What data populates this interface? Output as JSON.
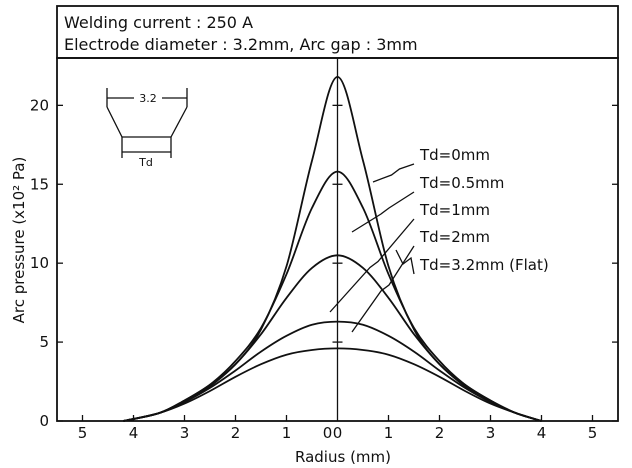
{
  "conditions": {
    "line1": "Welding current : 250 A",
    "line2": "Electrode diameter : 3.2mm,   Arc gap : 3mm"
  },
  "inset": {
    "top_label": "3.2",
    "bottom_label": "Td"
  },
  "chart_data": {
    "type": "line",
    "title": "",
    "xlabel": "Radius (mm)",
    "ylabel": "Arc pressure (x10² Pa)",
    "xlim": [
      -5.5,
      5.5
    ],
    "ylim": [
      0,
      23
    ],
    "x_tick_labels": [
      "5",
      "4",
      "3",
      "2",
      "1",
      "0",
      "0",
      "1",
      "2",
      "3",
      "4",
      "5"
    ],
    "y_ticks": [
      0,
      5,
      10,
      15,
      20
    ],
    "grid": false,
    "legend_placement": "upper-right (leader lines to curve peaks)",
    "series": [
      {
        "name": "Td=0mm",
        "x": [
          -4.2,
          -3.5,
          -3.0,
          -2.5,
          -2.0,
          -1.5,
          -1.0,
          -0.5,
          0,
          0.5,
          1.0,
          1.5,
          2.0,
          2.5,
          3.0,
          3.5,
          4.0
        ],
        "y": [
          0,
          0.5,
          1.3,
          2.3,
          3.6,
          5.8,
          9.8,
          16.5,
          21.8,
          16.5,
          9.8,
          5.8,
          3.6,
          2.3,
          1.3,
          0.5,
          0
        ]
      },
      {
        "name": "Td=0.5mm",
        "x": [
          -4.2,
          -3.5,
          -3.0,
          -2.5,
          -2.0,
          -1.5,
          -1.0,
          -0.5,
          0,
          0.5,
          1.0,
          1.5,
          2.0,
          2.5,
          3.0,
          3.5,
          4.0
        ],
        "y": [
          0,
          0.5,
          1.3,
          2.3,
          3.8,
          5.9,
          9.3,
          13.5,
          15.8,
          13.5,
          9.3,
          5.9,
          3.8,
          2.3,
          1.3,
          0.5,
          0
        ]
      },
      {
        "name": "Td=1mm",
        "x": [
          -4.2,
          -3.5,
          -3.0,
          -2.5,
          -2.0,
          -1.5,
          -1.0,
          -0.5,
          0,
          0.5,
          1.0,
          1.5,
          2.0,
          2.5,
          3.0,
          3.5,
          4.0
        ],
        "y": [
          0,
          0.5,
          1.2,
          2.2,
          3.6,
          5.5,
          7.8,
          9.7,
          10.5,
          9.7,
          7.8,
          5.5,
          3.6,
          2.2,
          1.2,
          0.5,
          0
        ]
      },
      {
        "name": "Td=2mm",
        "x": [
          -4.2,
          -3.5,
          -3.0,
          -2.5,
          -2.0,
          -1.5,
          -1.0,
          -0.5,
          0,
          0.5,
          1.0,
          1.5,
          2.0,
          2.5,
          3.0,
          3.5,
          4.0
        ],
        "y": [
          0,
          0.5,
          1.2,
          2.1,
          3.2,
          4.4,
          5.4,
          6.1,
          6.3,
          6.1,
          5.4,
          4.4,
          3.2,
          2.1,
          1.2,
          0.5,
          0
        ]
      },
      {
        "name": "Td=3.2mm (Flat)",
        "x": [
          -4.2,
          -3.5,
          -3.0,
          -2.5,
          -2.0,
          -1.5,
          -1.0,
          -0.5,
          0,
          0.5,
          1.0,
          1.5,
          2.0,
          2.5,
          3.0,
          3.5,
          4.0
        ],
        "y": [
          0,
          0.5,
          1.1,
          1.9,
          2.8,
          3.6,
          4.2,
          4.5,
          4.6,
          4.5,
          4.2,
          3.6,
          2.8,
          1.9,
          1.1,
          0.5,
          0
        ]
      }
    ]
  }
}
